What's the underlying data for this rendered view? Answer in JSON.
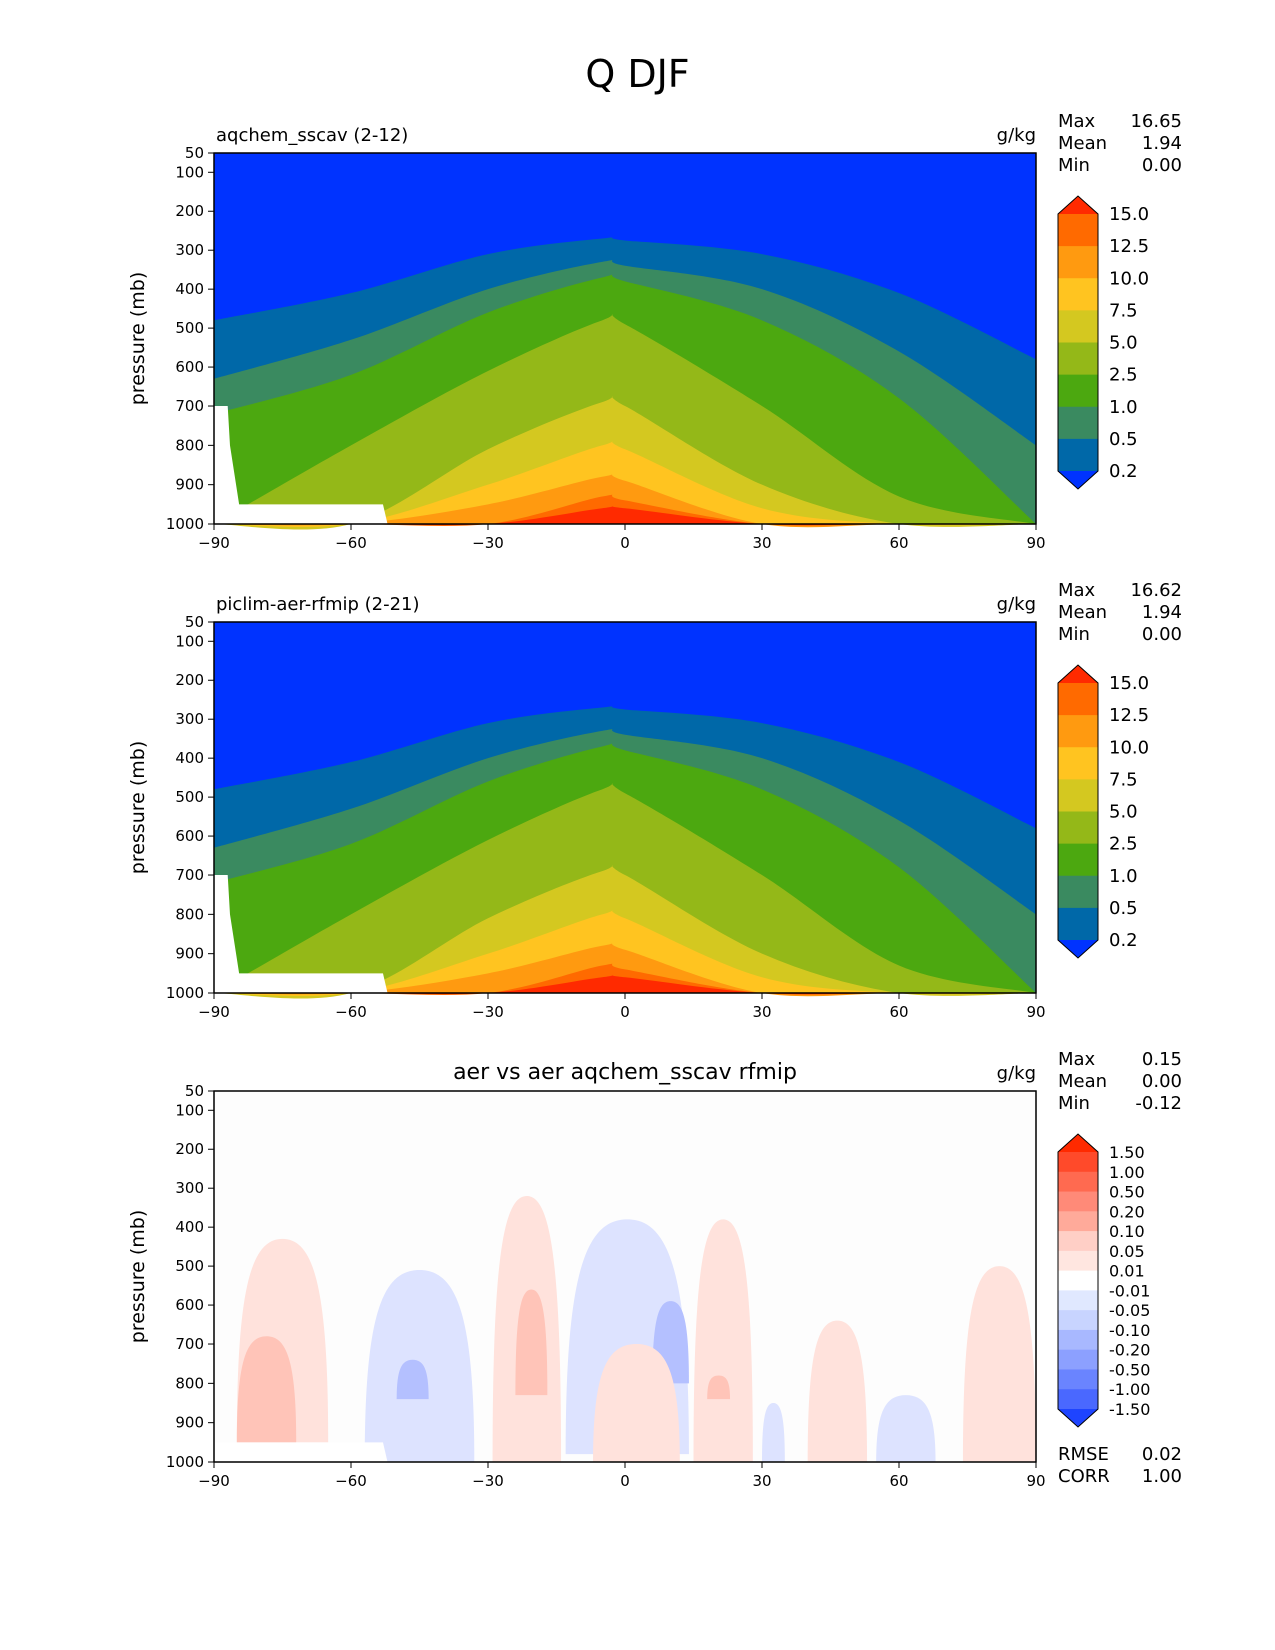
{
  "title": "Q DJF",
  "chart_data": [
    {
      "type": "heatmap",
      "title": "aqchem_sscav (2-12)",
      "units": "g/kg",
      "ylabel": "pressure (mb)",
      "xticks": [
        "−90",
        "−60",
        "−30",
        "0",
        "30",
        "60",
        "90"
      ],
      "yticks": [
        "50",
        "100",
        "200",
        "300",
        "400",
        "500",
        "600",
        "700",
        "800",
        "900",
        "1000"
      ],
      "xlim": [
        -90,
        90
      ],
      "ylim": [
        1000,
        50
      ],
      "stats": [
        {
          "label": "Max",
          "value": "16.65"
        },
        {
          "label": "Mean",
          "value": "1.94"
        },
        {
          "label": "Min",
          "value": "0.00"
        }
      ],
      "colorbar": {
        "labels": [
          "15.0",
          "12.5",
          "10.0",
          "7.5",
          "5.0",
          "2.5",
          "1.0",
          "0.5",
          "0.2"
        ],
        "colors": [
          "#ff2a00",
          "#ff6a00",
          "#ff9a10",
          "#ffc420",
          "#d4c820",
          "#94b818",
          "#4ca810",
          "#3a8a60",
          "#0068a8",
          "#0033ff"
        ]
      },
      "levels_boundaries": [
        0.2,
        0.5,
        1.0,
        2.5,
        5.0,
        7.5,
        10.0,
        12.5,
        15.0
      ],
      "contour_top_pressure_mb": {
        "lat": [
          -90,
          -60,
          -30,
          -5,
          0,
          30,
          60,
          90
        ],
        "0.2": [
          480,
          410,
          310,
          270,
          275,
          310,
          410,
          580
        ],
        "0.5": [
          630,
          530,
          400,
          330,
          340,
          400,
          560,
          800
        ],
        "1.0": [
          720,
          620,
          460,
          370,
          380,
          480,
          680,
          1000
        ],
        "2.5": [
          1000,
          800,
          610,
          480,
          490,
          700,
          930,
          1000
        ],
        "5.0": [
          1000,
          1000,
          810,
          690,
          700,
          900,
          1000,
          1000
        ],
        "7.5": [
          1000,
          1000,
          900,
          800,
          810,
          960,
          1000,
          1000
        ],
        "10.0": [
          1000,
          1000,
          950,
          880,
          890,
          1000,
          1000,
          1000
        ],
        "12.5": [
          1000,
          1000,
          1000,
          930,
          940,
          1000,
          1000,
          1000
        ],
        "15.0": [
          1000,
          1000,
          1000,
          960,
          960,
          1000,
          1000,
          1000
        ]
      }
    },
    {
      "type": "heatmap",
      "title": "piclim-aer-rfmip (2-21)",
      "units": "g/kg",
      "ylabel": "pressure (mb)",
      "xticks": [
        "−90",
        "−60",
        "−30",
        "0",
        "30",
        "60",
        "90"
      ],
      "yticks": [
        "50",
        "100",
        "200",
        "300",
        "400",
        "500",
        "600",
        "700",
        "800",
        "900",
        "1000"
      ],
      "xlim": [
        -90,
        90
      ],
      "ylim": [
        1000,
        50
      ],
      "stats": [
        {
          "label": "Max",
          "value": "16.62"
        },
        {
          "label": "Mean",
          "value": "1.94"
        },
        {
          "label": "Min",
          "value": "0.00"
        }
      ],
      "colorbar": {
        "labels": [
          "15.0",
          "12.5",
          "10.0",
          "7.5",
          "5.0",
          "2.5",
          "1.0",
          "0.5",
          "0.2"
        ],
        "colors": [
          "#ff2a00",
          "#ff6a00",
          "#ff9a10",
          "#ffc420",
          "#d4c820",
          "#94b818",
          "#4ca810",
          "#3a8a60",
          "#0068a8",
          "#0033ff"
        ]
      },
      "levels_boundaries": [
        0.2,
        0.5,
        1.0,
        2.5,
        5.0,
        7.5,
        10.0,
        12.5,
        15.0
      ],
      "contour_top_pressure_mb": {
        "lat": [
          -90,
          -60,
          -30,
          -5,
          0,
          30,
          60,
          90
        ],
        "0.2": [
          480,
          410,
          310,
          270,
          275,
          310,
          410,
          580
        ],
        "0.5": [
          630,
          530,
          400,
          330,
          340,
          400,
          560,
          800
        ],
        "1.0": [
          720,
          620,
          460,
          370,
          380,
          480,
          680,
          1000
        ],
        "2.5": [
          1000,
          800,
          610,
          480,
          490,
          700,
          930,
          1000
        ],
        "5.0": [
          1000,
          1000,
          810,
          690,
          700,
          900,
          1000,
          1000
        ],
        "7.5": [
          1000,
          1000,
          900,
          800,
          810,
          960,
          1000,
          1000
        ],
        "10.0": [
          1000,
          1000,
          950,
          880,
          890,
          1000,
          1000,
          1000
        ],
        "12.5": [
          1000,
          1000,
          1000,
          930,
          940,
          1000,
          1000,
          1000
        ],
        "15.0": [
          1000,
          1000,
          1000,
          960,
          960,
          1000,
          1000,
          1000
        ]
      }
    },
    {
      "type": "heatmap",
      "title": "aer vs aer aqchem_sscav rfmip",
      "units": "g/kg",
      "ylabel": "pressure (mb)",
      "xticks": [
        "−90",
        "−60",
        "−30",
        "0",
        "30",
        "60",
        "90"
      ],
      "yticks": [
        "50",
        "100",
        "200",
        "300",
        "400",
        "500",
        "600",
        "700",
        "800",
        "900",
        "1000"
      ],
      "xlim": [
        -90,
        90
      ],
      "ylim": [
        1000,
        50
      ],
      "stats": [
        {
          "label": "Max",
          "value": "0.15"
        },
        {
          "label": "Mean",
          "value": "0.00"
        },
        {
          "label": "Min",
          "value": "-0.12"
        }
      ],
      "footer_stats": [
        {
          "label": "RMSE",
          "value": "0.02"
        },
        {
          "label": "CORR",
          "value": "1.00"
        }
      ],
      "colorbar": {
        "labels": [
          "1.50",
          "1.00",
          "0.50",
          "0.20",
          "0.10",
          "0.05",
          "0.01",
          "-0.01",
          "-0.05",
          "-0.10",
          "-0.20",
          "-0.50",
          "-1.00",
          "-1.50"
        ],
        "colors": [
          "#ff2a00",
          "#ff4a2a",
          "#ff6a50",
          "#ff8a78",
          "#ffaa9a",
          "#ffcfc6",
          "#ffe6e0",
          "#ffffff",
          "#e0e8ff",
          "#c8d4ff",
          "#a8b8ff",
          "#8ca0ff",
          "#6a84ff",
          "#4a68ff",
          "#1e44ff"
        ]
      },
      "anomalies": [
        {
          "lat_range": [
            -85,
            -65
          ],
          "p_range": [
            430,
            950
          ],
          "level": "0.01"
        },
        {
          "lat_range": [
            -85,
            -72
          ],
          "p_range": [
            680,
            950
          ],
          "level": "0.05"
        },
        {
          "lat_range": [
            -57,
            -33
          ],
          "p_range": [
            510,
            1000
          ],
          "level": "-0.01"
        },
        {
          "lat_range": [
            -50,
            -43
          ],
          "p_range": [
            740,
            840
          ],
          "level": "-0.05"
        },
        {
          "lat_range": [
            -29,
            -14
          ],
          "p_range": [
            320,
            1000
          ],
          "level": "0.01"
        },
        {
          "lat_range": [
            -24,
            -17
          ],
          "p_range": [
            560,
            830
          ],
          "level": "0.05"
        },
        {
          "lat_range": [
            -13,
            14
          ],
          "p_range": [
            380,
            980
          ],
          "level": "-0.01"
        },
        {
          "lat_range": [
            6,
            14
          ],
          "p_range": [
            590,
            800
          ],
          "level": "-0.05"
        },
        {
          "lat_range": [
            -7,
            12
          ],
          "p_range": [
            700,
            1000
          ],
          "level": "0.01"
        },
        {
          "lat_range": [
            15,
            28
          ],
          "p_range": [
            380,
            1000
          ],
          "level": "0.01"
        },
        {
          "lat_range": [
            18,
            23
          ],
          "p_range": [
            780,
            840
          ],
          "level": "0.05"
        },
        {
          "lat_range": [
            30,
            35
          ],
          "p_range": [
            850,
            1000
          ],
          "level": "-0.01"
        },
        {
          "lat_range": [
            40,
            53
          ],
          "p_range": [
            640,
            1000
          ],
          "level": "0.01"
        },
        {
          "lat_range": [
            55,
            68
          ],
          "p_range": [
            830,
            1000
          ],
          "level": "-0.01"
        },
        {
          "lat_range": [
            74,
            90
          ],
          "p_range": [
            500,
            1000
          ],
          "level": "0.01"
        }
      ]
    }
  ]
}
